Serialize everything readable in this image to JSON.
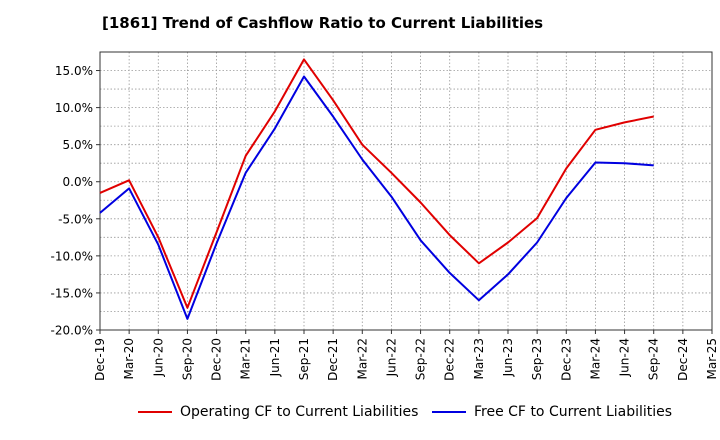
{
  "chart_data": {
    "type": "line",
    "title": "[1861]  Trend of Cashflow Ratio to Current Liabilities",
    "xlabel": "",
    "ylabel": "",
    "categories": [
      "Dec-19",
      "Mar-20",
      "Jun-20",
      "Sep-20",
      "Dec-20",
      "Mar-21",
      "Jun-21",
      "Sep-21",
      "Dec-21",
      "Mar-22",
      "Jun-22",
      "Sep-22",
      "Dec-22",
      "Mar-23",
      "Jun-23",
      "Sep-23",
      "Dec-23",
      "Mar-24",
      "Jun-24",
      "Sep-24",
      "Dec-24",
      "Mar-25"
    ],
    "ylim": [
      -20,
      17.5
    ],
    "yticks": [
      15,
      10,
      5,
      0,
      -5,
      -10,
      -15,
      -20
    ],
    "ytick_labels": [
      "15.0%",
      "10.0%",
      "5.0%",
      "0.0%",
      "-5.0%",
      "-10.0%",
      "-15.0%",
      "-20.0%"
    ],
    "grid": true,
    "legend_position": "bottom",
    "series": [
      {
        "name": "Operating CF to Current Liabilities",
        "color": "#e00000",
        "values": [
          -1.5,
          0.2,
          -7.5,
          -17.0,
          -6.8,
          3.5,
          9.5,
          16.5,
          11.0,
          5.0,
          1.2,
          -2.8,
          -7.2,
          -11.0,
          -8.2,
          -4.9,
          1.8,
          7.0,
          8.0,
          8.8,
          null,
          null
        ]
      },
      {
        "name": "Free CF to Current Liabilities",
        "color": "#0000e0",
        "values": [
          -4.2,
          -0.9,
          -8.5,
          -18.5,
          -8.3,
          1.2,
          7.2,
          14.2,
          8.8,
          3.0,
          -2.0,
          -7.9,
          -12.3,
          -16.0,
          -12.5,
          -8.2,
          -2.2,
          2.6,
          2.5,
          2.2,
          null,
          null
        ]
      }
    ]
  }
}
